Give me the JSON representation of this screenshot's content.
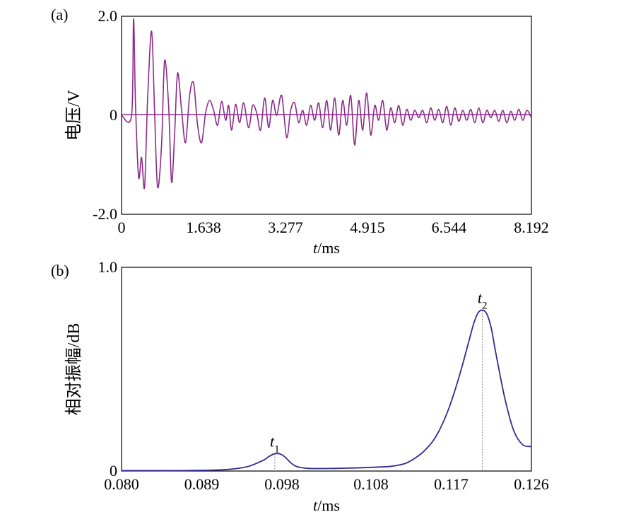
{
  "chart_data": [
    {
      "type": "line",
      "panel_label": "(a)",
      "title": "",
      "xlabel": {
        "var": "t",
        "unit": "/ms"
      },
      "ylabel": "电压/V",
      "xlim": [
        0,
        8.192
      ],
      "ylim": [
        -2.0,
        2.0
      ],
      "x_ticks": [
        0,
        1.638,
        3.277,
        4.915,
        6.544,
        8.192
      ],
      "x_tick_labels": [
        "0",
        "1.638",
        "3.277",
        "4.915",
        "6.544",
        "8.192"
      ],
      "y_ticks": [
        -2.0,
        0,
        2.0
      ],
      "y_tick_labels": [
        "-2.0",
        "0",
        "2.0"
      ],
      "grid": false,
      "colors": {
        "line": "#8e2a8a",
        "baseline": "#8e2a8a",
        "axis": "#000000"
      },
      "series": [
        {
          "name": "voltage",
          "x": [
            0,
            0.2,
            0.24,
            0.28,
            0.34,
            0.4,
            0.46,
            0.52,
            0.6,
            0.66,
            0.72,
            0.8,
            0.86,
            0.94,
            1.0,
            1.06,
            1.12,
            1.2,
            1.28,
            1.36,
            1.44,
            1.52,
            1.6,
            1.68,
            1.76,
            1.84,
            1.92,
            2.0,
            2.08,
            2.14,
            2.2,
            2.28,
            2.36,
            2.44,
            2.54,
            2.62,
            2.7,
            2.78,
            2.86,
            2.94,
            3.02,
            3.1,
            3.2,
            3.3,
            3.38,
            3.46,
            3.54,
            3.62,
            3.7,
            3.78,
            3.86,
            3.94,
            4.02,
            4.1,
            4.18,
            4.26,
            4.34,
            4.42,
            4.5,
            4.58,
            4.66,
            4.74,
            4.82,
            4.9,
            4.98,
            5.06,
            5.14,
            5.22,
            5.3,
            5.38,
            5.46,
            5.54,
            5.62,
            5.7,
            5.78,
            5.86,
            5.94,
            6.02,
            6.1,
            6.18,
            6.26,
            6.34,
            6.42,
            6.5,
            6.58,
            6.66,
            6.74,
            6.82,
            6.9,
            6.98,
            7.06,
            7.14,
            7.22,
            7.3,
            7.38,
            7.46,
            7.54,
            7.62,
            7.7,
            7.78,
            7.86,
            7.94,
            8.02,
            8.1,
            8.192
          ],
          "values": [
            0,
            0,
            1.95,
            0.2,
            -1.25,
            -0.85,
            -1.45,
            0.3,
            1.7,
            0.1,
            -1.45,
            -0.6,
            1.1,
            0.2,
            -1.35,
            -0.4,
            0.85,
            0.1,
            -0.55,
            0.4,
            0.65,
            -0.2,
            -0.55,
            0.05,
            0.3,
            0.1,
            -0.2,
            0.28,
            -0.1,
            0.2,
            -0.3,
            0.22,
            -0.15,
            0.25,
            -0.25,
            0.2,
            0.05,
            -0.3,
            0.35,
            -0.25,
            0.3,
            0.0,
            0.4,
            -0.45,
            0.1,
            0.25,
            -0.15,
            0.1,
            -0.2,
            0.2,
            -0.1,
            0.25,
            -0.25,
            0.3,
            -0.3,
            0.35,
            -0.4,
            0.3,
            -0.2,
            0.4,
            -0.6,
            0.3,
            -0.3,
            0.45,
            -0.4,
            0.2,
            -0.1,
            0.3,
            -0.3,
            0.15,
            -0.15,
            0.2,
            -0.2,
            0.12,
            -0.1,
            0.1,
            -0.05,
            0.1,
            -0.15,
            0.15,
            -0.1,
            0.12,
            -0.15,
            0.18,
            -0.2,
            0.15,
            -0.12,
            0.1,
            -0.1,
            0.12,
            -0.15,
            0.15,
            -0.15,
            0.1,
            -0.05,
            0.1,
            -0.12,
            0.1,
            -0.15,
            0.08,
            -0.1,
            0.12,
            -0.1,
            0.1,
            -0.05
          ]
        }
      ]
    },
    {
      "type": "line",
      "panel_label": "(b)",
      "title": "",
      "xlabel": {
        "var": "t",
        "unit": "/ms"
      },
      "ylabel": "相对振幅/dB",
      "xlim": [
        0.08,
        0.126
      ],
      "ylim": [
        0,
        1.0
      ],
      "x_ticks": [
        0.08,
        0.089,
        0.098,
        0.108,
        0.117,
        0.126
      ],
      "x_tick_labels": [
        "0.080",
        "0.089",
        "0.098",
        "0.108",
        "0.117",
        "0.126"
      ],
      "y_ticks": [
        0,
        1.0
      ],
      "y_tick_labels": [
        "0",
        "1.0"
      ],
      "grid": false,
      "colors": {
        "line": "#2f2d8e",
        "marker_line": "#808080",
        "axis": "#000000"
      },
      "annotations": [
        {
          "label": "t",
          "sub": "1",
          "x": 0.0972,
          "y": 0.085
        },
        {
          "label": "t",
          "sub": "2",
          "x": 0.1205,
          "y": 0.79
        }
      ],
      "series": [
        {
          "name": "relative amplitude",
          "x": [
            0.08,
            0.082,
            0.084,
            0.086,
            0.088,
            0.09,
            0.092,
            0.094,
            0.095,
            0.096,
            0.0965,
            0.097,
            0.0975,
            0.098,
            0.0985,
            0.099,
            0.0995,
            0.1,
            0.101,
            0.102,
            0.104,
            0.106,
            0.108,
            0.11,
            0.111,
            0.112,
            0.113,
            0.114,
            0.115,
            0.116,
            0.117,
            0.118,
            0.119,
            0.1195,
            0.12,
            0.1205,
            0.121,
            0.1215,
            0.122,
            0.123,
            0.124,
            0.125,
            0.126
          ],
          "values": [
            0.002,
            0.002,
            0.002,
            0.002,
            0.003,
            0.004,
            0.008,
            0.02,
            0.035,
            0.055,
            0.07,
            0.082,
            0.086,
            0.08,
            0.062,
            0.04,
            0.025,
            0.018,
            0.013,
            0.012,
            0.013,
            0.015,
            0.018,
            0.022,
            0.028,
            0.04,
            0.065,
            0.1,
            0.15,
            0.23,
            0.34,
            0.48,
            0.64,
            0.72,
            0.775,
            0.79,
            0.77,
            0.7,
            0.58,
            0.36,
            0.2,
            0.13,
            0.12
          ]
        }
      ]
    }
  ]
}
